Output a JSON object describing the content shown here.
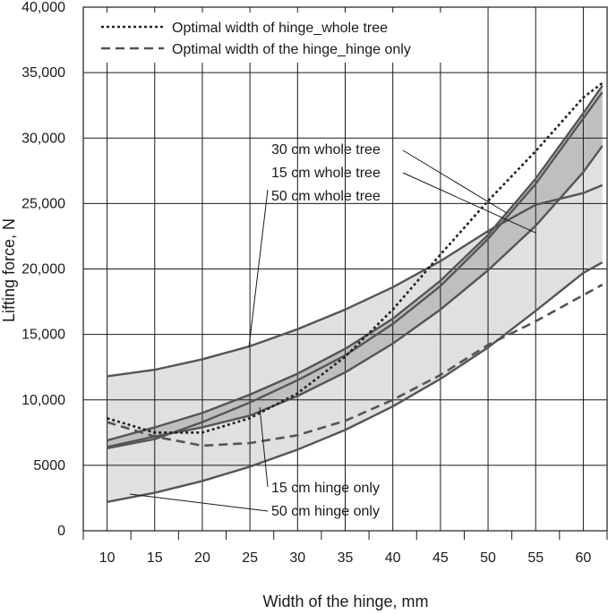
{
  "chart_data": {
    "type": "line",
    "title": "",
    "xlabel": "Width of the hinge, mm",
    "ylabel": "Lifting force, N",
    "xlim": [
      7.5,
      62.5
    ],
    "ylim": [
      0,
      40000
    ],
    "x_ticks": [
      10,
      15,
      20,
      25,
      30,
      35,
      40,
      45,
      50,
      55,
      60
    ],
    "x_tick_labels": [
      "10",
      "15",
      "20",
      "25",
      "30",
      "35",
      "40",
      "45",
      "50",
      "55",
      "60"
    ],
    "y_ticks": [
      0,
      5000,
      10000,
      15000,
      20000,
      25000,
      30000,
      35000,
      40000
    ],
    "y_tick_labels": [
      "0",
      "5000",
      "10,000",
      "15,000",
      "20,000",
      "25,000",
      "30,000",
      "35,000",
      "40,000"
    ],
    "grid": true,
    "legend_position": "top-left",
    "x": [
      10,
      15,
      20,
      25,
      30,
      35,
      40,
      45,
      50,
      55,
      60,
      62
    ],
    "series": [
      {
        "name": "",
        "label": "50 cm whole tree",
        "color": "#555555",
        "values": [
          11800,
          12300,
          13100,
          14100,
          15400,
          16900,
          18600,
          20600,
          22900,
          null,
          null,
          null
        ]
      },
      {
        "name": "",
        "label": "30 cm whole tree",
        "color": "#555555",
        "values": [
          6900,
          7900,
          9000,
          10400,
          12000,
          13900,
          16200,
          19100,
          22600,
          26900,
          31900,
          34000
        ]
      },
      {
        "name": "",
        "label": "15 cm whole tree",
        "color": "#555555",
        "values": [
          6300,
          7000,
          8300,
          9800,
          11500,
          13400,
          15800,
          18700,
          22300,
          26500,
          31500,
          33500
        ]
      },
      {
        "name": "",
        "label": "15 cm hinge only",
        "color": "#555555",
        "values": [
          6400,
          7200,
          7900,
          8800,
          10300,
          12100,
          14300,
          16900,
          19900,
          23300,
          27400,
          29400
        ]
      },
      {
        "name": "",
        "label": "50 cm hinge only",
        "color": "#555555",
        "values": [
          2200,
          2900,
          3800,
          4900,
          6200,
          7700,
          9500,
          11600,
          14000,
          16800,
          19700,
          20500
        ]
      },
      {
        "name": "Optimal width of hinge_whole tree",
        "label": "",
        "color": "#222222",
        "dash": "dotted",
        "values": [
          8600,
          7500,
          7500,
          8600,
          10500,
          13300,
          16900,
          21100,
          25200,
          29000,
          33100,
          34200
        ]
      },
      {
        "name": "Optimal width of the hinge_hinge only",
        "label": "",
        "color": "#555555",
        "dash": "dashed",
        "values": [
          8300,
          7200,
          6500,
          6700,
          7300,
          8400,
          10000,
          11900,
          14200,
          16000,
          18000,
          18800
        ]
      }
    ],
    "extra_lines": [
      {
        "label": "50 cm whole tree tail",
        "x": [
          50,
          55,
          60,
          62
        ],
        "values": [
          22900,
          24900,
          25800,
          26400
        ]
      }
    ],
    "bands": [
      {
        "color": "#e0e0e0",
        "upper": "50 cm whole tree",
        "lower": "50 cm hinge only"
      },
      {
        "color": "#bfbfbf",
        "upper": "30 cm whole tree",
        "lower": "15 cm hinge only"
      }
    ]
  }
}
